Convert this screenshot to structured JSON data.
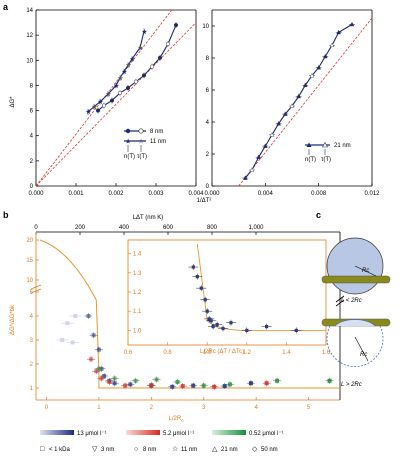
{
  "panels": {
    "a": "a",
    "b": "b",
    "c": "c"
  },
  "panel_a": {
    "ylabel": "ΔG*",
    "xlabel": "1/ΔT²",
    "left": {
      "xticks": [
        "0.000",
        "0.001",
        "0.002",
        "0.003",
        "0.004"
      ],
      "yticks": [
        "0",
        "2",
        "4",
        "6",
        "8",
        "10",
        "12",
        "14"
      ],
      "legend": [
        {
          "label": "8 nm"
        },
        {
          "label": "11 nm"
        }
      ],
      "legend_sub": [
        "n(T)",
        "τ(T)"
      ]
    },
    "right": {
      "xticks": [
        "0.000",
        "0.004",
        "0.008",
        "0.012"
      ],
      "yticks": [
        "0",
        "2",
        "4",
        "6",
        "8",
        "10"
      ],
      "legend": [
        {
          "label": "21 nm"
        }
      ],
      "legend_sub": [
        "n(T)",
        "τ(T)"
      ]
    }
  },
  "panel_b": {
    "top_xlabel": "LΔT (nm K)",
    "top_xticks": [
      "0",
      "200",
      "400",
      "600",
      "800",
      "1,000"
    ],
    "xlabel": "L/2R",
    "xlabel_sub": "c",
    "xticks": [
      "0",
      "1",
      "2",
      "3",
      "4",
      "5"
    ],
    "ylabel": "ΔG*/ΔG*bk",
    "yticks": [
      "1",
      "2",
      "3",
      "4",
      "5",
      "10",
      "15",
      "20"
    ],
    "inset": {
      "xlabel": "L/2Rc (ΔT / ΔTc)",
      "xticks": [
        "0.6",
        "0.8",
        "1.0",
        "1.2",
        "1.4",
        "1.6"
      ],
      "yticks": [
        "1.0",
        "1.1",
        "1.2",
        "1.3",
        "1.4"
      ]
    },
    "colorbars": [
      {
        "label": "13 μmol l⁻¹",
        "color": "#2c3c8c"
      },
      {
        "label": "5.2 μmol l⁻¹",
        "color": "#e0302a"
      },
      {
        "label": "0.52 μmol l⁻¹",
        "color": "#1e9a3c"
      }
    ],
    "size_legend": [
      {
        "symbol": "□",
        "label": "< 1 kDa"
      },
      {
        "symbol": "▽",
        "label": "3 nm"
      },
      {
        "symbol": "○",
        "label": "8 nm"
      },
      {
        "symbol": "☆",
        "label": "11 nm"
      },
      {
        "symbol": "△",
        "label": "21 nm"
      },
      {
        "symbol": "◇",
        "label": "50 nm"
      }
    ]
  },
  "panel_c": {
    "top_label": "L < 2Rc",
    "bottom_label": "L > 2Rc",
    "rc_label": "Rc"
  },
  "chart_data": [
    {
      "type": "line",
      "xlabel": "1/ΔT²",
      "ylabel": "ΔG*",
      "xlim": [
        0,
        0.004
      ],
      "ylim": [
        0,
        14
      ],
      "series": [
        {
          "name": "8 nm",
          "x": [
            0.00155,
            0.0017,
            0.0019,
            0.0021,
            0.0023,
            0.0025,
            0.0027,
            0.0029,
            0.0031,
            0.0033,
            0.0035
          ],
          "y": [
            6.0,
            6.4,
            6.8,
            7.4,
            7.8,
            8.3,
            8.8,
            9.5,
            10.2,
            11.3,
            12.8
          ]
        },
        {
          "name": "11 nm",
          "x": [
            0.0013,
            0.00145,
            0.0016,
            0.0018,
            0.002,
            0.0021,
            0.0022,
            0.0023,
            0.0024,
            0.0026,
            0.0027
          ],
          "y": [
            5.9,
            6.3,
            6.7,
            7.3,
            8.0,
            8.6,
            9.1,
            9.6,
            10.1,
            11.0,
            12.3
          ]
        }
      ],
      "reference_lines": [
        {
          "x": [
            0,
            0.004
          ],
          "y": [
            0,
            13
          ]
        },
        {
          "x": [
            0,
            0.004
          ],
          "y": [
            0,
            16.5
          ]
        }
      ]
    },
    {
      "type": "line",
      "xlabel": "1/ΔT²",
      "ylabel": "ΔG*",
      "xlim": [
        0,
        0.012
      ],
      "ylim": [
        0,
        11
      ],
      "series": [
        {
          "name": "21 nm",
          "x": [
            0.0025,
            0.003,
            0.0035,
            0.004,
            0.0045,
            0.005,
            0.0055,
            0.006,
            0.0065,
            0.007,
            0.0075,
            0.008,
            0.0085,
            0.009,
            0.0095,
            0.0105
          ],
          "y": [
            0.5,
            1.0,
            1.8,
            2.5,
            3.2,
            3.9,
            4.5,
            5.0,
            5.6,
            6.3,
            6.9,
            7.4,
            8.1,
            8.8,
            9.6,
            10.1
          ]
        }
      ],
      "reference_lines": [
        {
          "x": [
            0.002,
            0.012
          ],
          "y": [
            0,
            10.5
          ]
        }
      ]
    },
    {
      "type": "scatter",
      "xlabel": "L/2Rc",
      "ylabel": "ΔG*/ΔG*bk",
      "xlim": [
        -0.2,
        5.6
      ],
      "series": [
        {
          "name": "13 μmol l⁻¹",
          "x": [
            0.8,
            0.9,
            1.0,
            1.05,
            1.1,
            1.2,
            1.3,
            1.6,
            2.0,
            2.4,
            2.8,
            3.4,
            3.9
          ],
          "y": [
            4.0,
            3.2,
            2.6,
            1.8,
            1.5,
            1.3,
            1.2,
            1.15,
            1.1,
            1.05,
            1.1,
            1.08,
            1.2
          ]
        },
        {
          "name": "5.2 μmol l⁻¹",
          "x": [
            0.85,
            0.95,
            1.05,
            1.2,
            1.5,
            2.0,
            2.6,
            3.2,
            4.2
          ],
          "y": [
            2.2,
            1.7,
            1.4,
            1.25,
            1.1,
            1.12,
            1.08,
            1.05,
            1.2
          ]
        },
        {
          "name": "0.52 μmol l⁻¹",
          "x": [
            1.0,
            1.3,
            1.7,
            2.1,
            2.5,
            3.0,
            3.5,
            4.4,
            5.4
          ],
          "y": [
            1.8,
            1.4,
            1.3,
            1.35,
            1.25,
            1.1,
            1.15,
            1.3,
            1.3
          ]
        }
      ]
    },
    {
      "type": "scatter",
      "xlabel": "L/2Rc (ΔT / ΔTc)",
      "xlim": [
        0.6,
        1.6
      ],
      "ylim": [
        0.95,
        1.45
      ],
      "series": [
        {
          "name": "inset",
          "x": [
            0.93,
            0.95,
            0.97,
            0.99,
            1.0,
            1.01,
            1.02,
            1.03,
            1.05,
            1.08,
            1.12,
            1.2,
            1.3,
            1.45
          ],
          "y": [
            1.33,
            1.28,
            1.22,
            1.16,
            1.1,
            1.06,
            1.05,
            1.02,
            1.03,
            1.01,
            1.04,
            1.0,
            1.02,
            1.0
          ]
        }
      ]
    }
  ]
}
